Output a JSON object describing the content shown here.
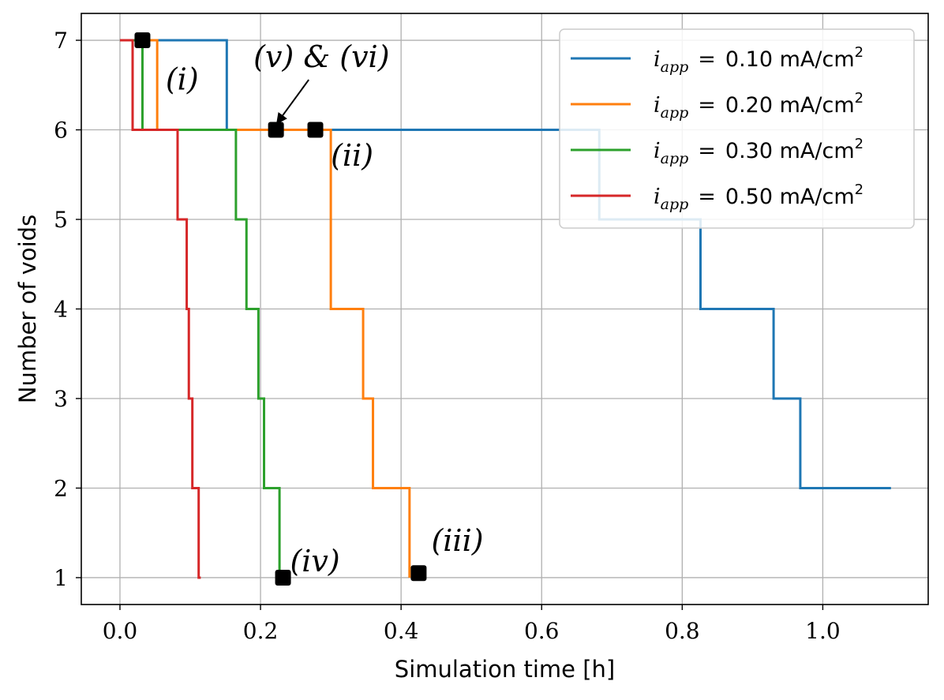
{
  "chart_data": {
    "type": "line",
    "step": "post",
    "xlabel": "Simulation time [h]",
    "ylabel": "Number of voids",
    "xlim": [
      -0.055,
      1.15
    ],
    "ylim": [
      0.7,
      7.3
    ],
    "xticks": [
      0.0,
      0.2,
      0.4,
      0.6,
      0.8,
      1.0
    ],
    "xtick_labels": [
      "0.0",
      "0.2",
      "0.4",
      "0.6",
      "0.8",
      "1.0"
    ],
    "yticks": [
      1,
      2,
      3,
      4,
      5,
      6,
      7
    ],
    "ytick_labels": [
      "1",
      "2",
      "3",
      "4",
      "5",
      "6",
      "7"
    ],
    "grid": true,
    "legend_position": "top-right",
    "series": [
      {
        "name_parts": {
          "var": "i",
          "sub": "app",
          "eq": "=",
          "value": "0.10 mA/cm",
          "sup": "2"
        },
        "color": "#1f77b4",
        "x": [
          0.0,
          0.152,
          0.682,
          0.826,
          0.93,
          0.968,
          1.097
        ],
        "y": [
          7,
          6,
          5,
          4,
          3,
          2,
          2
        ]
      },
      {
        "name_parts": {
          "var": "i",
          "sub": "app",
          "eq": "=",
          "value": "0.20 mA/cm",
          "sup": "2"
        },
        "color": "#ff7f0e",
        "x": [
          0.0,
          0.053,
          0.3,
          0.346,
          0.36,
          0.412,
          0.412
        ],
        "y": [
          7,
          6,
          4,
          3,
          2,
          1,
          1
        ]
      },
      {
        "name_parts": {
          "var": "i",
          "sub": "app",
          "eq": "=",
          "value": "0.30 mA/cm",
          "sup": "2"
        },
        "color": "#2ca02c",
        "x": [
          0.0,
          0.032,
          0.165,
          0.18,
          0.197,
          0.205,
          0.227,
          0.227
        ],
        "y": [
          7,
          6,
          5,
          4,
          3,
          2,
          1,
          1
        ]
      },
      {
        "name_parts": {
          "var": "i",
          "sub": "app",
          "eq": "=",
          "value": "0.50 mA/cm",
          "sup": "2"
        },
        "color": "#d62728",
        "x": [
          0.0,
          0.018,
          0.082,
          0.095,
          0.098,
          0.103,
          0.112,
          0.115
        ],
        "y": [
          7,
          6,
          5,
          4,
          3,
          2,
          1,
          1
        ]
      }
    ],
    "markers": [
      {
        "x": 0.032,
        "y": 7
      },
      {
        "x": 0.222,
        "y": 6
      },
      {
        "x": 0.278,
        "y": 6
      },
      {
        "x": 0.232,
        "y": 1
      },
      {
        "x": 0.425,
        "y": 1.05
      }
    ],
    "annotations": [
      {
        "text": "(i)",
        "x": 0.065,
        "y": 6.45
      },
      {
        "text": "(v) & (vi)",
        "x": 0.19,
        "y": 6.7,
        "arrow_to": {
          "x": 0.222,
          "y": 6.1
        }
      },
      {
        "text": "(ii)",
        "x": 0.3,
        "y": 5.6
      },
      {
        "text": "(iv)",
        "x": 0.242,
        "y": 1.07
      },
      {
        "text": "(iii)",
        "x": 0.443,
        "y": 1.3
      }
    ]
  }
}
